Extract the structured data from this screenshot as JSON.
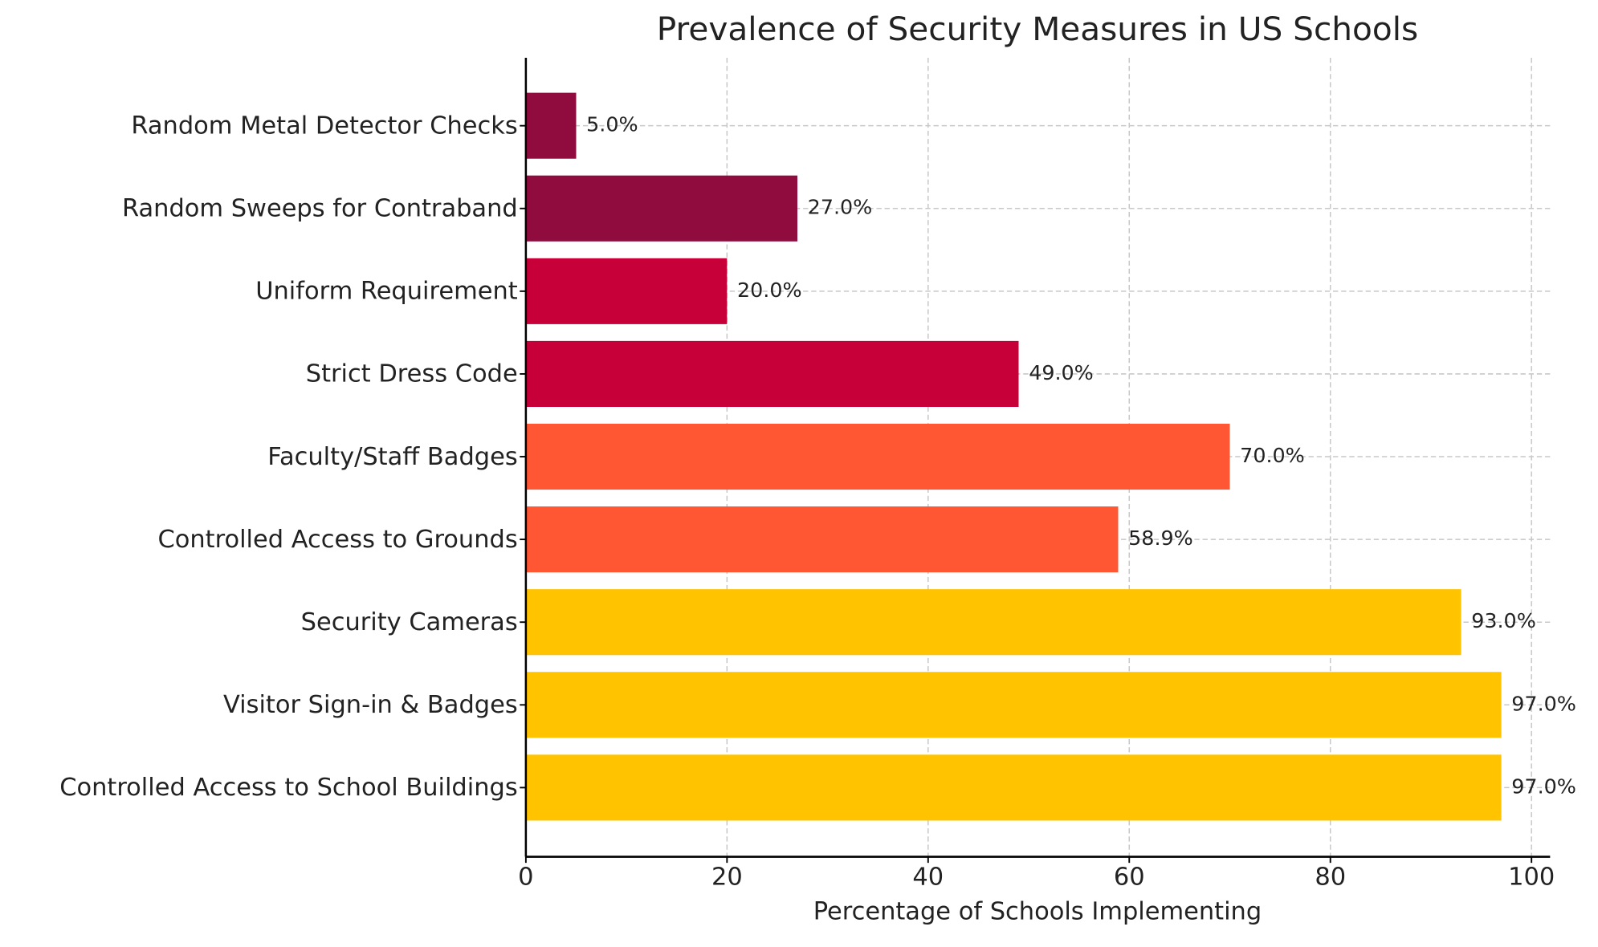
{
  "chart_data": {
    "type": "bar",
    "orientation": "horizontal",
    "title": "Prevalence of Security Measures in US Schools",
    "x_label": "Percentage of Schools Implementing",
    "categories": [
      "Random Metal Detector Checks",
      "Random Sweeps for Contraband",
      "Uniform Requirement",
      "Strict Dress Code",
      "Faculty/Staff Badges",
      "Controlled Access to Grounds",
      "Security Cameras",
      "Visitor Sign-in & Badges",
      "Controlled Access to School Buildings"
    ],
    "values": [
      5.0,
      27.0,
      20.0,
      49.0,
      70.0,
      58.9,
      93.0,
      97.0,
      97.0
    ],
    "value_labels": [
      "5.0%",
      "27.0%",
      "20.0%",
      "49.0%",
      "70.0%",
      "58.9%",
      "93.0%",
      "97.0%",
      "97.0%"
    ],
    "colors": [
      "#900C3F",
      "#900C3F",
      "#C70039",
      "#C70039",
      "#FF5733",
      "#FF5733",
      "#FFC300",
      "#FFC300",
      "#FFC300"
    ],
    "xlim": [
      0,
      101.85
    ],
    "xticks": [
      0,
      20,
      40,
      60,
      80,
      100
    ],
    "grid": true
  }
}
